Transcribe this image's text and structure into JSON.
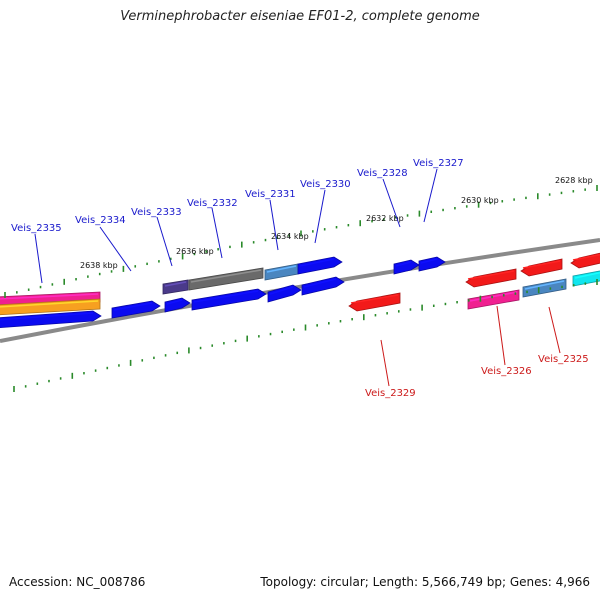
{
  "title": "Verminephrobacter eiseniae EF01-2, complete genome",
  "footer": {
    "accession": "Accession: NC_008786",
    "summary": "Topology: circular; Length: 5,566,749 bp; Genes: 4,966"
  },
  "colors": {
    "backbone": "#8a8a8a",
    "tick": "#2a8a2a",
    "blue": "#0b0bf0",
    "red": "#f21a1a",
    "gray": "#6a6a6a",
    "steel": "#4a86c0",
    "purple": "#4a3a8a",
    "pink": "#f02090",
    "orange": "#f7a020",
    "cyan": "#10e6ee",
    "label_blue": "#1a1acc",
    "label_red": "#cc1a1a"
  },
  "scale_labels": [
    {
      "text": "2638 kbp"
    },
    {
      "text": "2636 kbp"
    },
    {
      "text": "2634 kbp"
    },
    {
      "text": "2632 kbp"
    },
    {
      "text": "2630 kbp"
    },
    {
      "text": "2628 kbp"
    }
  ],
  "gene_labels": [
    {
      "text": "Veis_2335",
      "strand": "top"
    },
    {
      "text": "Veis_2334",
      "strand": "top"
    },
    {
      "text": "Veis_2333",
      "strand": "top"
    },
    {
      "text": "Veis_2332",
      "strand": "top"
    },
    {
      "text": "Veis_2331",
      "strand": "top"
    },
    {
      "text": "Veis_2330",
      "strand": "top"
    },
    {
      "text": "Veis_2328",
      "strand": "top"
    },
    {
      "text": "Veis_2327",
      "strand": "top"
    },
    {
      "text": "Veis_2329",
      "strand": "bottom"
    },
    {
      "text": "Veis_2326",
      "strand": "bottom"
    },
    {
      "text": "Veis_2325",
      "strand": "bottom"
    }
  ]
}
